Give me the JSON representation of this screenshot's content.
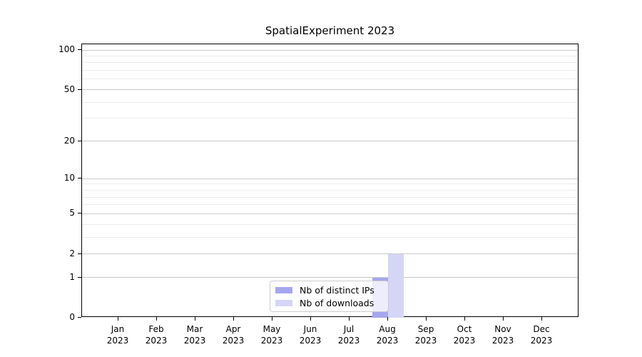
{
  "chart_data": {
    "type": "bar",
    "title": "SpatialExperiment 2023",
    "year_label": "2023",
    "months": [
      "Jan",
      "Feb",
      "Mar",
      "Apr",
      "May",
      "Jun",
      "Jul",
      "Aug",
      "Sep",
      "Oct",
      "Nov",
      "Dec"
    ],
    "series": [
      {
        "name": "Nb of distinct IPs",
        "color": "#a6a6ef",
        "values": [
          0,
          0,
          0,
          0,
          0,
          0,
          0,
          1,
          0,
          0,
          0,
          0
        ]
      },
      {
        "name": "Nb of downloads",
        "color": "#d5d5f6",
        "values": [
          0,
          0,
          0,
          0,
          0,
          0,
          0,
          2,
          0,
          0,
          0,
          0
        ]
      }
    ],
    "y_axis": {
      "scale": "log1p",
      "major_ticks": [
        0,
        1,
        2,
        5,
        10,
        20,
        50,
        100
      ],
      "minor_ticks": [
        3,
        4,
        6,
        7,
        8,
        9,
        30,
        40,
        60,
        70,
        80,
        90
      ],
      "ylim": [
        0,
        110
      ]
    },
    "x_axis": {
      "categories": [
        "Jan 2023",
        "Feb 2023",
        "Mar 2023",
        "Apr 2023",
        "May 2023",
        "Jun 2023",
        "Jul 2023",
        "Aug 2023",
        "Sep 2023",
        "Oct 2023",
        "Nov 2023",
        "Dec 2023"
      ]
    },
    "legend": {
      "items": [
        "Nb of distinct IPs",
        "Nb of downloads"
      ],
      "position": "lower-center"
    },
    "grid": {
      "major_color": "#c9c9c9",
      "minor_color": "#ececec",
      "orientation": "horizontal"
    },
    "colors": {
      "background": "#ffffff",
      "axis": "#000000",
      "distinct_ips_bar": "#a6a6ef",
      "downloads_bar": "#d5d5f6"
    }
  }
}
